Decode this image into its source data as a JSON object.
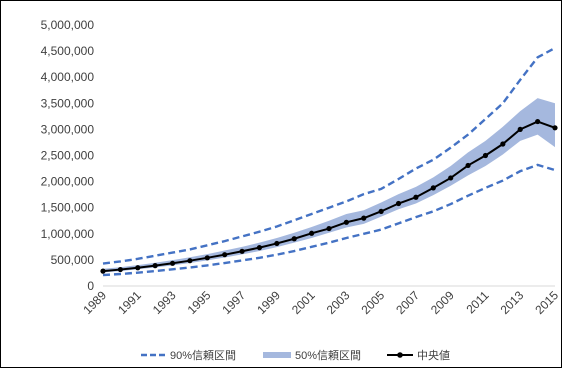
{
  "chart_data": {
    "type": "line",
    "title": "",
    "xlabel": "",
    "ylabel": "",
    "ylim": [
      0,
      5000000
    ],
    "yticks": [
      0,
      500000,
      1000000,
      1500000,
      2000000,
      2500000,
      3000000,
      3500000,
      4000000,
      4500000,
      5000000
    ],
    "ytick_labels": [
      "0",
      "500,000",
      "1,000,000",
      "1,500,000",
      "2,000,000",
      "2,500,000",
      "3,000,000",
      "3,500,000",
      "4,000,000",
      "4,500,000",
      "5,000,000"
    ],
    "x": [
      1989,
      1990,
      1991,
      1992,
      1993,
      1994,
      1995,
      1996,
      1997,
      1998,
      1999,
      2000,
      2001,
      2002,
      2003,
      2004,
      2005,
      2006,
      2007,
      2008,
      2009,
      2010,
      2011,
      2012,
      2013,
      2014,
      2015
    ],
    "xtick_labels": [
      "1989",
      "1991",
      "1993",
      "1995",
      "1997",
      "1999",
      "2001",
      "2003",
      "2005",
      "2007",
      "2009",
      "2011",
      "2013",
      "2015"
    ],
    "grid": false,
    "legend_position": "bottom",
    "series": [
      {
        "name": "90%信頼区間",
        "style": "dashed",
        "color": "#4472C4",
        "upper": [
          430000,
          470000,
          520000,
          580000,
          640000,
          700000,
          780000,
          860000,
          950000,
          1040000,
          1140000,
          1260000,
          1380000,
          1500000,
          1620000,
          1760000,
          1860000,
          2050000,
          2250000,
          2420000,
          2650000,
          2900000,
          3200000,
          3500000,
          3950000,
          4380000,
          4560000
        ],
        "lower": [
          210000,
          230000,
          255000,
          285000,
          320000,
          355000,
          395000,
          440000,
          490000,
          540000,
          600000,
          670000,
          750000,
          830000,
          920000,
          1000000,
          1080000,
          1200000,
          1320000,
          1430000,
          1570000,
          1730000,
          1880000,
          2020000,
          2200000,
          2320000,
          2220000
        ]
      },
      {
        "name": "50%信頼区間",
        "style": "band",
        "color": "#A5B8DE",
        "upper": [
          330000,
          360000,
          400000,
          445000,
          495000,
          550000,
          610000,
          680000,
          750000,
          830000,
          920000,
          1020000,
          1130000,
          1250000,
          1380000,
          1450000,
          1600000,
          1760000,
          1900000,
          2080000,
          2300000,
          2560000,
          2780000,
          3050000,
          3350000,
          3600000,
          3500000
        ],
        "lower": [
          260000,
          285000,
          320000,
          355000,
          395000,
          440000,
          490000,
          545000,
          605000,
          670000,
          745000,
          830000,
          920000,
          1020000,
          1120000,
          1190000,
          1330000,
          1470000,
          1580000,
          1740000,
          1920000,
          2120000,
          2300000,
          2520000,
          2780000,
          2900000,
          2660000
        ]
      },
      {
        "name": "中央値",
        "style": "line-marker",
        "color": "#000000",
        "values": [
          285000,
          315000,
          350000,
          390000,
          435000,
          485000,
          540000,
          600000,
          665000,
          735000,
          815000,
          905000,
          1010000,
          1100000,
          1220000,
          1300000,
          1430000,
          1580000,
          1700000,
          1880000,
          2070000,
          2310000,
          2500000,
          2720000,
          3000000,
          3150000,
          3030000
        ]
      }
    ]
  }
}
